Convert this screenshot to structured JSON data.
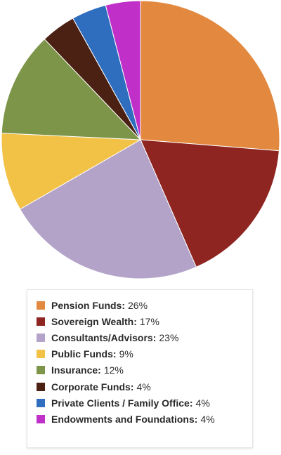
{
  "chart_data": {
    "type": "pie",
    "slices": [
      {
        "label": "Pension Funds",
        "value": 26,
        "display": "26%",
        "color": "#E3893F"
      },
      {
        "label": "Sovereign Wealth",
        "value": 17,
        "display": "17%",
        "color": "#8E2521"
      },
      {
        "label": "Consultants/Advisors",
        "value": 23,
        "display": "23%",
        "color": "#B3A3C9"
      },
      {
        "label": "Public Funds",
        "value": 9,
        "display": "9%",
        "color": "#F2C247"
      },
      {
        "label": "Insurance",
        "value": 12,
        "display": "12%",
        "color": "#7D9548"
      },
      {
        "label": "Corporate Funds",
        "value": 4,
        "display": "4%",
        "color": "#4A2113"
      },
      {
        "label": "Private Clients / Family Office",
        "value": 4,
        "display": "4%",
        "color": "#2F6DBE"
      },
      {
        "label": "Endowments and Foundations",
        "value": 4,
        "display": "4%",
        "color": "#C030C8"
      }
    ],
    "legend_position": "bottom"
  }
}
